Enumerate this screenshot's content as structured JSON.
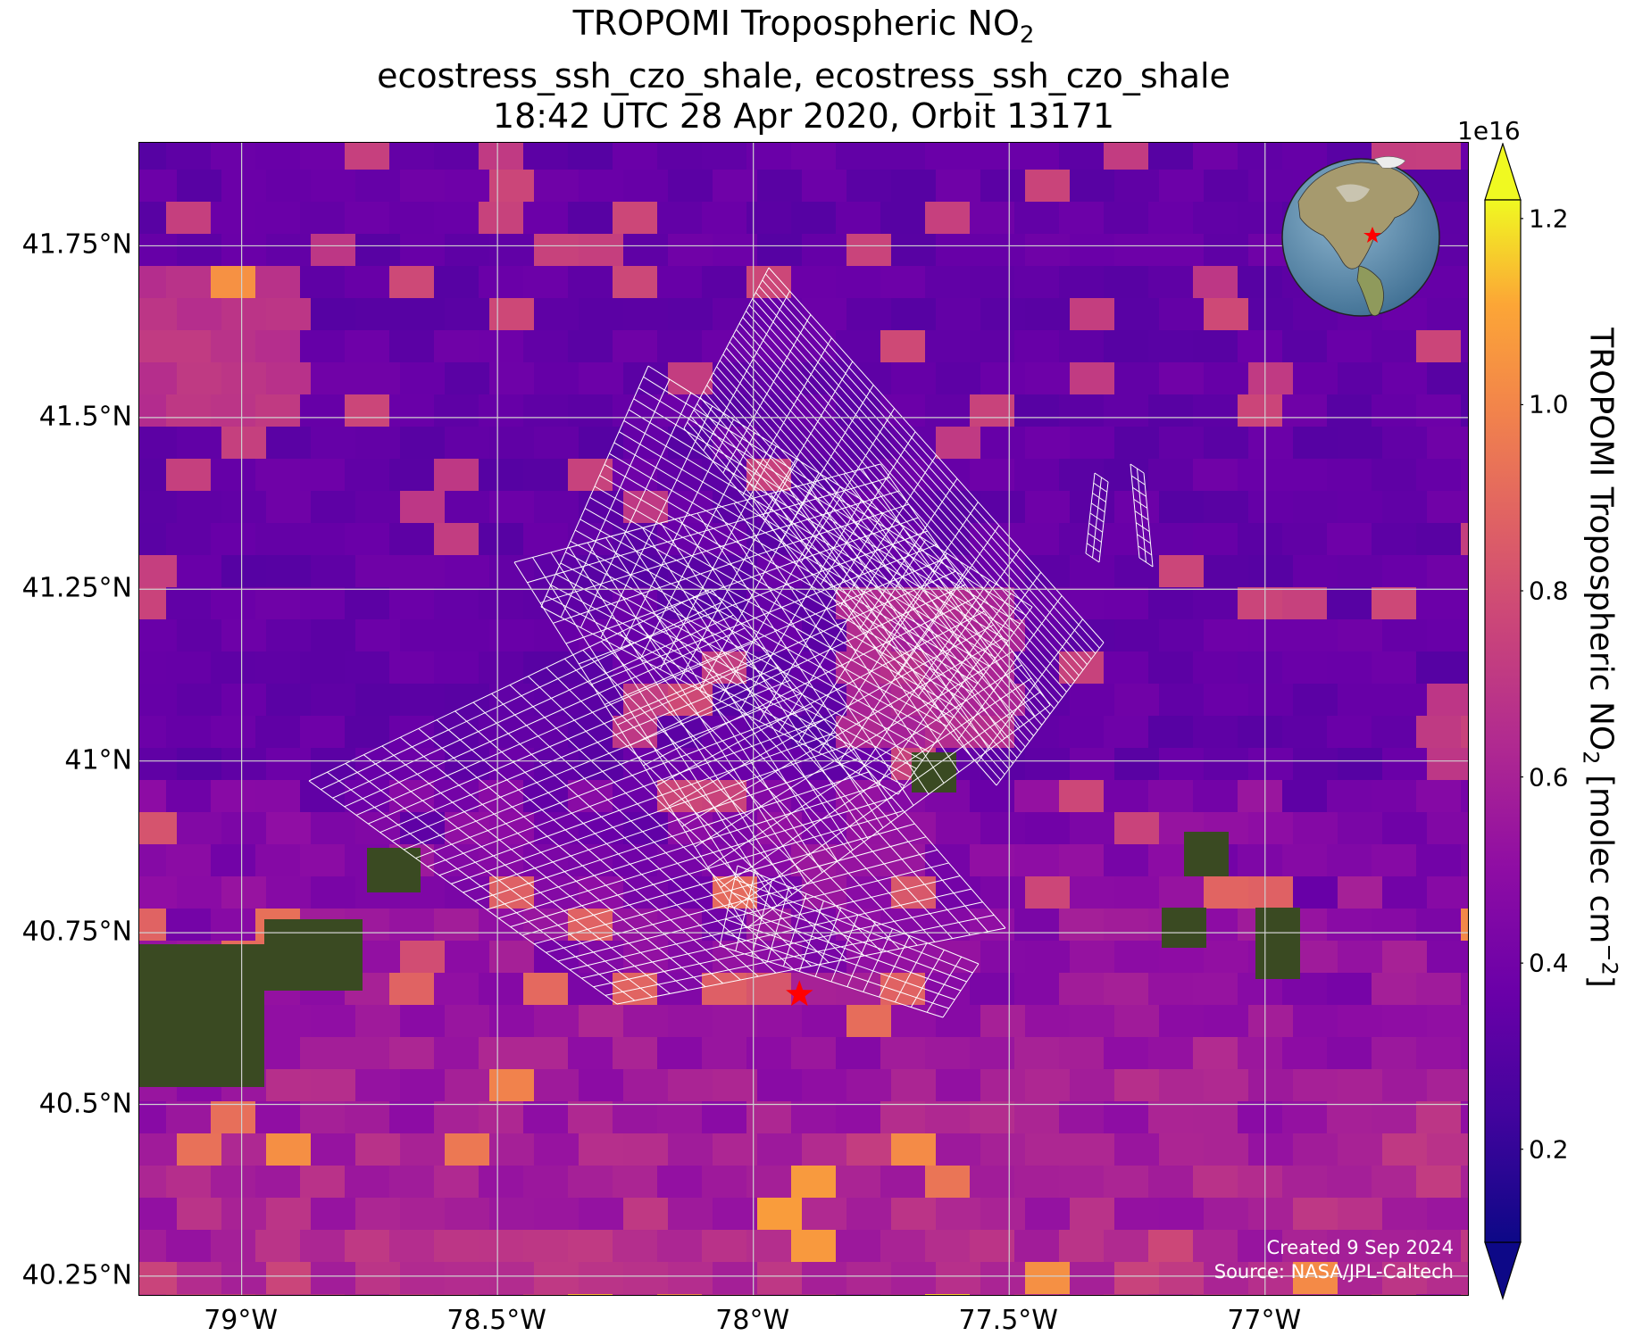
{
  "title": {
    "line1_main": "TROPOMI Tropospheric NO",
    "line1_sub": "2",
    "line2": "ecostress_ssh_czo_shale, ecostress_ssh_czo_shale",
    "line3": "18:42 UTC 28 Apr 2020, Orbit 13171"
  },
  "map": {
    "lon_range": [
      -79.2,
      -76.6
    ],
    "lat_range": [
      40.22,
      41.9
    ],
    "lat_ticks": [
      {
        "value": 41.75,
        "label": "41.75°N"
      },
      {
        "value": 41.5,
        "label": "41.5°N"
      },
      {
        "value": 41.25,
        "label": "41.25°N"
      },
      {
        "value": 41.0,
        "label": "41°N"
      },
      {
        "value": 40.75,
        "label": "40.75°N"
      },
      {
        "value": 40.5,
        "label": "40.5°N"
      },
      {
        "value": 40.25,
        "label": "40.25°N"
      }
    ],
    "lon_ticks": [
      {
        "value": -79.0,
        "label": "79°W"
      },
      {
        "value": -78.5,
        "label": "78.5°W"
      },
      {
        "value": -78.0,
        "label": "78°W"
      },
      {
        "value": -77.5,
        "label": "77.5°W"
      },
      {
        "value": -77.0,
        "label": "77°W"
      }
    ],
    "grid": true,
    "site_marker": {
      "lon": -77.91,
      "lat": 40.66,
      "symbol": "star",
      "color": "#ff0000"
    },
    "credit_line1": "Created 9 Sep 2024",
    "credit_line2": "Source: NASA/JPL-Caltech",
    "inset": "globe-locator-north-america"
  },
  "colorbar": {
    "colormap": "plasma",
    "exponent_label": "1e16",
    "range": [
      0.1,
      1.22
    ],
    "ticks": [
      {
        "value": 0.2,
        "label": "0.2"
      },
      {
        "value": 0.4,
        "label": "0.4"
      },
      {
        "value": 0.6,
        "label": "0.6"
      },
      {
        "value": 0.8,
        "label": "0.8"
      },
      {
        "value": 1.0,
        "label": "1.0"
      },
      {
        "value": 1.2,
        "label": "1.2"
      }
    ],
    "label_main": "TROPOMI Tropospheric NO",
    "label_sub": "2",
    "label_units": " [molec cm",
    "label_sup": "−2",
    "label_end": "]"
  },
  "colors": {
    "low": "#0d0887",
    "mid": "#b12a90",
    "high": "#f0f921",
    "grid": "#d0d0d0",
    "footprint_outline": "#ffffff"
  }
}
